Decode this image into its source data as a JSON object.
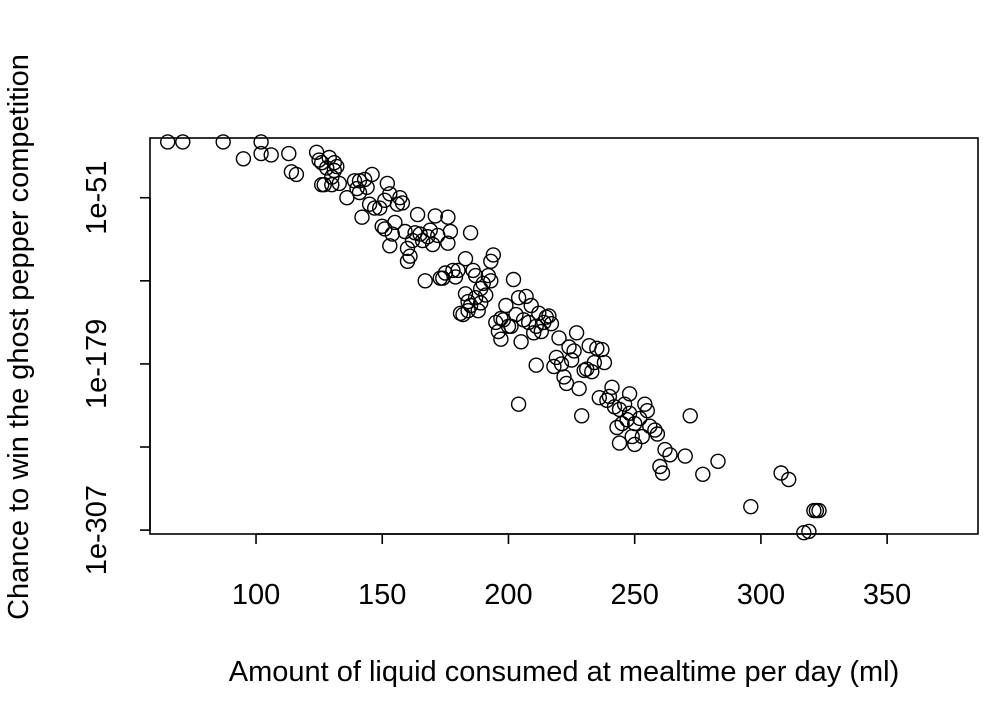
{
  "chart_data": {
    "type": "scatter",
    "title": "",
    "xlabel": "Amount of liquid consumed at mealtime per day (ml)",
    "ylabel": "Chance to win the ghost pepper competition",
    "y_scale": "log10",
    "xlim": [
      58,
      386
    ],
    "ylim_log10": [
      -310,
      -5
    ],
    "x_ticks": [
      100,
      150,
      200,
      250,
      300,
      350
    ],
    "x_tick_labels": [
      "100",
      "150",
      "200",
      "250",
      "300",
      "350"
    ],
    "y_ticks_log10": [
      -51,
      -115,
      -179,
      -243,
      -307
    ],
    "y_tick_labels": [
      "1e-51",
      "",
      "1e-179",
      "",
      "1e-307"
    ],
    "grid": false,
    "legend": "none",
    "marker": "open-circle",
    "colors": {
      "point": "#000000",
      "axis": "#000000",
      "background": "#ffffff"
    },
    "points": [
      [
        65,
        -8
      ],
      [
        71,
        -8
      ],
      [
        87,
        -8
      ],
      [
        95,
        -21
      ],
      [
        102,
        -8
      ],
      [
        102,
        -17
      ],
      [
        106,
        -18
      ],
      [
        113,
        -17
      ],
      [
        114,
        -31
      ],
      [
        116,
        -33
      ],
      [
        124,
        -16
      ],
      [
        125,
        -22
      ],
      [
        126,
        -24
      ],
      [
        126,
        -41
      ],
      [
        127,
        -41
      ],
      [
        128,
        -28
      ],
      [
        129,
        -20
      ],
      [
        130,
        -35
      ],
      [
        130,
        -41
      ],
      [
        131,
        -30
      ],
      [
        131,
        -24
      ],
      [
        132,
        -27
      ],
      [
        133,
        -40
      ],
      [
        136,
        -51
      ],
      [
        139,
        -38
      ],
      [
        140,
        -44
      ],
      [
        141,
        -38
      ],
      [
        141,
        -47
      ],
      [
        142,
        -66
      ],
      [
        143,
        -37
      ],
      [
        144,
        -43
      ],
      [
        145,
        -56
      ],
      [
        146,
        -33
      ],
      [
        147,
        -59
      ],
      [
        149,
        -59
      ],
      [
        150,
        -73
      ],
      [
        151,
        -75
      ],
      [
        151,
        -53
      ],
      [
        152,
        -40
      ],
      [
        153,
        -48
      ],
      [
        153,
        -88
      ],
      [
        154,
        -79
      ],
      [
        155,
        -70
      ],
      [
        156,
        -56
      ],
      [
        157,
        -51
      ],
      [
        158,
        -55
      ],
      [
        159,
        -77
      ],
      [
        160,
        -90
      ],
      [
        160,
        -100
      ],
      [
        161,
        -96
      ],
      [
        162,
        -84
      ],
      [
        163,
        -78
      ],
      [
        164,
        -64
      ],
      [
        165,
        -79
      ],
      [
        166,
        -84
      ],
      [
        167,
        -115
      ],
      [
        168,
        -81
      ],
      [
        169,
        -76
      ],
      [
        170,
        -87
      ],
      [
        171,
        -65
      ],
      [
        172,
        -80
      ],
      [
        173,
        -113
      ],
      [
        174,
        -113
      ],
      [
        175,
        -109
      ],
      [
        176,
        -66
      ],
      [
        176,
        -86
      ],
      [
        177,
        -77
      ],
      [
        178,
        -107
      ],
      [
        179,
        -112
      ],
      [
        180,
        -107
      ],
      [
        181,
        -140
      ],
      [
        182,
        -141
      ],
      [
        183,
        -98
      ],
      [
        183,
        -125
      ],
      [
        184,
        -131
      ],
      [
        184,
        -138
      ],
      [
        185,
        -134
      ],
      [
        185,
        -78
      ],
      [
        186,
        -107
      ],
      [
        187,
        -111
      ],
      [
        187,
        -128
      ],
      [
        188,
        -138
      ],
      [
        189,
        -132
      ],
      [
        189,
        -121
      ],
      [
        190,
        -117
      ],
      [
        191,
        -126
      ],
      [
        192,
        -111
      ],
      [
        193,
        -115
      ],
      [
        193,
        -100
      ],
      [
        194,
        -95
      ],
      [
        195,
        -147
      ],
      [
        196,
        -154
      ],
      [
        197,
        -144
      ],
      [
        197,
        -160
      ],
      [
        198,
        -145
      ],
      [
        199,
        -134
      ],
      [
        200,
        -150
      ],
      [
        201,
        -150
      ],
      [
        202,
        -114
      ],
      [
        203,
        -141
      ],
      [
        204,
        -128
      ],
      [
        204,
        -210
      ],
      [
        205,
        -162
      ],
      [
        206,
        -145
      ],
      [
        207,
        -127
      ],
      [
        208,
        -147
      ],
      [
        209,
        -134
      ],
      [
        210,
        -155
      ],
      [
        211,
        -150
      ],
      [
        211,
        -180
      ],
      [
        212,
        -140
      ],
      [
        213,
        -154
      ],
      [
        214,
        -147
      ],
      [
        215,
        -143
      ],
      [
        216,
        -142
      ],
      [
        217,
        -148
      ],
      [
        218,
        -181
      ],
      [
        219,
        -174
      ],
      [
        220,
        -159
      ],
      [
        221,
        -179
      ],
      [
        222,
        -189
      ],
      [
        223,
        -194
      ],
      [
        224,
        -166
      ],
      [
        225,
        -176
      ],
      [
        226,
        -169
      ],
      [
        227,
        -155
      ],
      [
        228,
        -198
      ],
      [
        229,
        -219
      ],
      [
        230,
        -184
      ],
      [
        231,
        -183
      ],
      [
        232,
        -165
      ],
      [
        233,
        -185
      ],
      [
        234,
        -178
      ],
      [
        235,
        -167
      ],
      [
        236,
        -205
      ],
      [
        237,
        -168
      ],
      [
        238,
        -178
      ],
      [
        239,
        -207
      ],
      [
        240,
        -204
      ],
      [
        241,
        -197
      ],
      [
        242,
        -212
      ],
      [
        243,
        -228
      ],
      [
        244,
        -214
      ],
      [
        244,
        -240
      ],
      [
        245,
        -225
      ],
      [
        246,
        -210
      ],
      [
        247,
        -222
      ],
      [
        248,
        -202
      ],
      [
        248,
        -217
      ],
      [
        249,
        -235
      ],
      [
        250,
        -241
      ],
      [
        250,
        -225
      ],
      [
        252,
        -221
      ],
      [
        253,
        -235
      ],
      [
        254,
        -210
      ],
      [
        255,
        -215
      ],
      [
        256,
        -227
      ],
      [
        258,
        -230
      ],
      [
        259,
        -233
      ],
      [
        260,
        -258
      ],
      [
        261,
        -263
      ],
      [
        262,
        -245
      ],
      [
        264,
        -249
      ],
      [
        270,
        -250
      ],
      [
        272,
        -219
      ],
      [
        277,
        -264
      ],
      [
        283,
        -254
      ],
      [
        296,
        -289
      ],
      [
        308,
        -263
      ],
      [
        311,
        -268
      ],
      [
        317,
        -309
      ],
      [
        319,
        -308
      ],
      [
        321,
        -292
      ],
      [
        322,
        -292
      ],
      [
        323,
        -292
      ]
    ]
  }
}
